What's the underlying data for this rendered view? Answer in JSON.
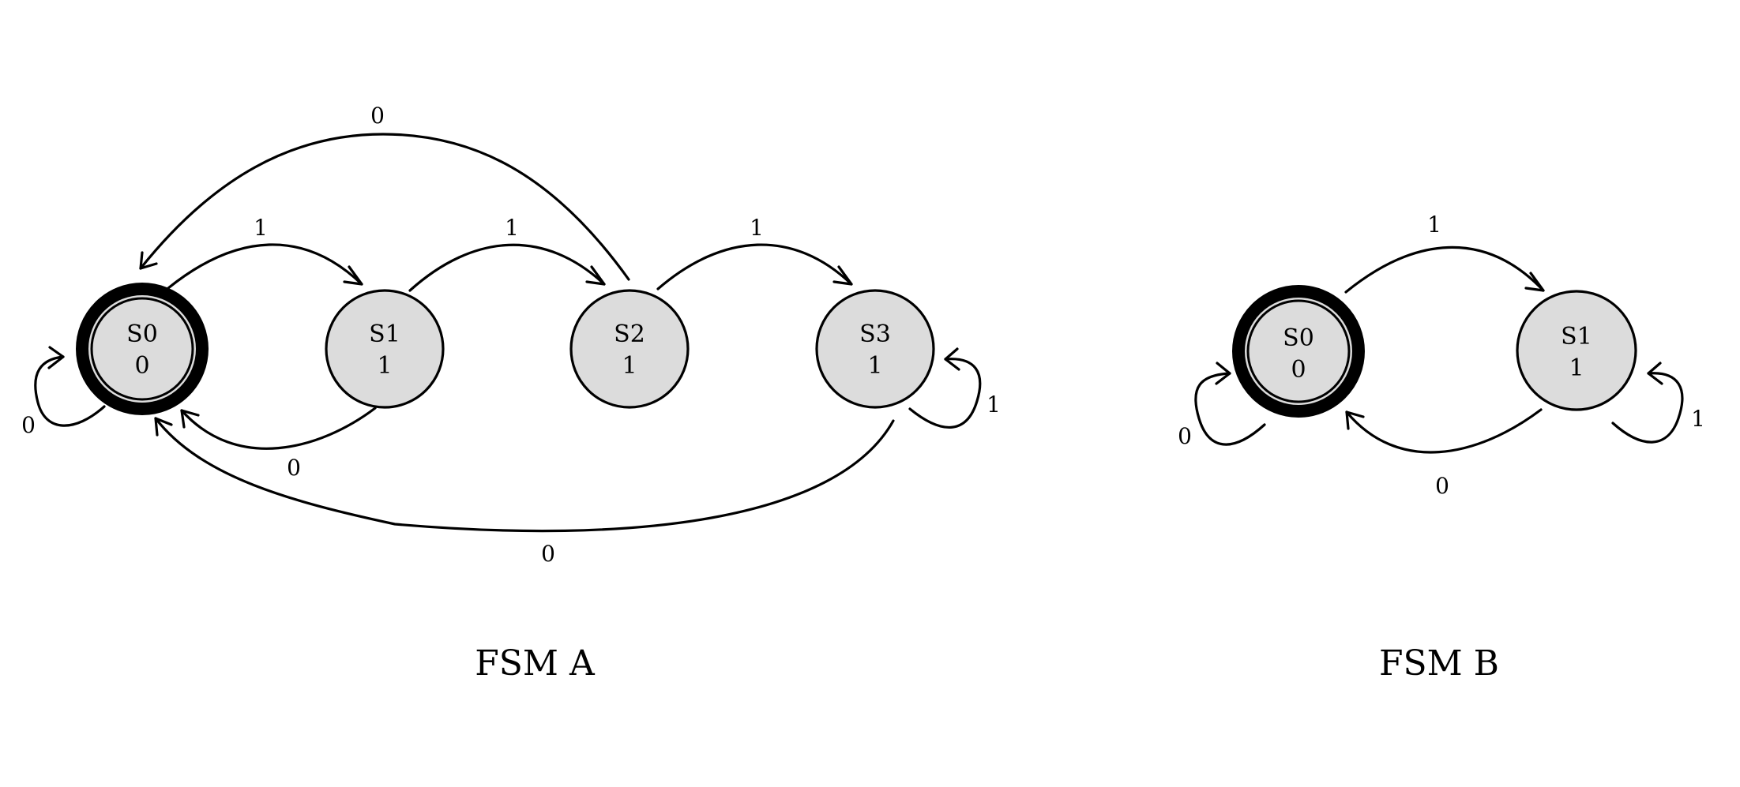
{
  "colors": {
    "state_fill": "#dcdcdc",
    "stroke": "#000000",
    "background": "#ffffff"
  },
  "fsm_a": {
    "caption": "FSM A",
    "states": {
      "s0": {
        "name": "S0",
        "output": "0"
      },
      "s1": {
        "name": "S1",
        "output": "1"
      },
      "s2": {
        "name": "S2",
        "output": "1"
      },
      "s3": {
        "name": "S3",
        "output": "1"
      }
    },
    "transitions": {
      "s0_s0": "0",
      "s0_s1": "1",
      "s1_s2": "1",
      "s2_s3": "1",
      "s3_s3": "1",
      "s1_s0": "0",
      "s2_s0": "0",
      "s3_s0": "0"
    }
  },
  "fsm_b": {
    "caption": "FSM B",
    "states": {
      "s0": {
        "name": "S0",
        "output": "0"
      },
      "s1": {
        "name": "S1",
        "output": "1"
      }
    },
    "transitions": {
      "s0_s0": "0",
      "s0_s1": "1",
      "s1_s1": "1",
      "s1_s0": "0"
    }
  }
}
